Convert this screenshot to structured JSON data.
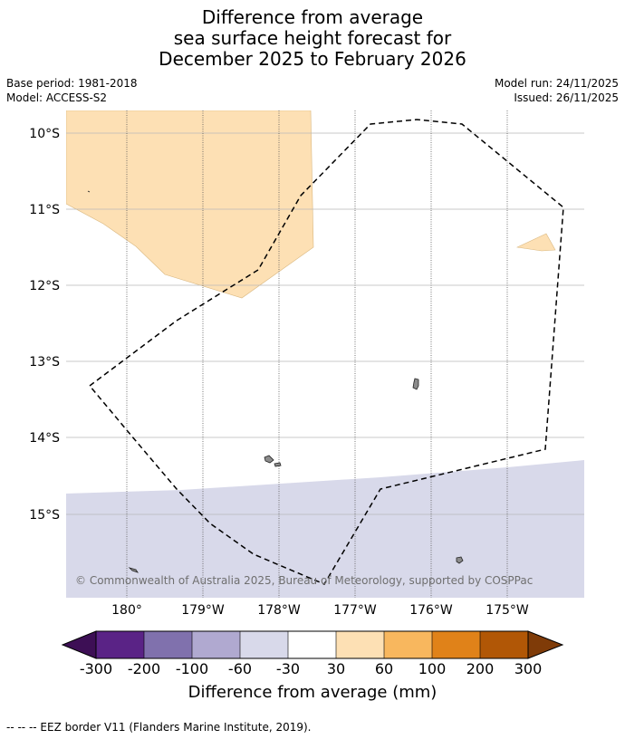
{
  "title": {
    "line1": "Difference from average",
    "line2": "sea surface height forecast for",
    "line3": "December 2025 to February 2026"
  },
  "meta": {
    "base_period": "Base period: 1981-2018",
    "model": "Model: ACCESS-S2",
    "model_run": "Model run: 24/11/2025",
    "issued": "Issued: 26/11/2025"
  },
  "map": {
    "lat_labels": [
      "10°S",
      "11°S",
      "12°S",
      "13°S",
      "14°S",
      "15°S"
    ],
    "lon_labels": [
      "180°",
      "179°W",
      "178°W",
      "177°W",
      "176°W",
      "175°W"
    ],
    "credit": "© Commonwealth of Australia 2025, Bureau of Meteorology, supported by COSPPac"
  },
  "colorbar": {
    "ticks": [
      "-300",
      "-200",
      "-100",
      "-60",
      "-30",
      "30",
      "60",
      "100",
      "200",
      "300"
    ],
    "colors": [
      "#3d0f55",
      "#5a2386",
      "#8071ad",
      "#b0a9d0",
      "#d8d9ea",
      "#ffffff",
      "#fde0b4",
      "#f8b75e",
      "#e08219",
      "#b15706",
      "#7f3b08"
    ],
    "label": "Difference from average (mm)"
  },
  "legend": {
    "eez_note": "--  --  -- EEZ border V11 (Flanders Marine Institute, 2019)."
  },
  "fills": {
    "positive_anomaly": "#fde0b4",
    "negative_anomaly": "#d8d9ea",
    "land": "#8c8c8c",
    "gridline": "#b8b8b8"
  }
}
